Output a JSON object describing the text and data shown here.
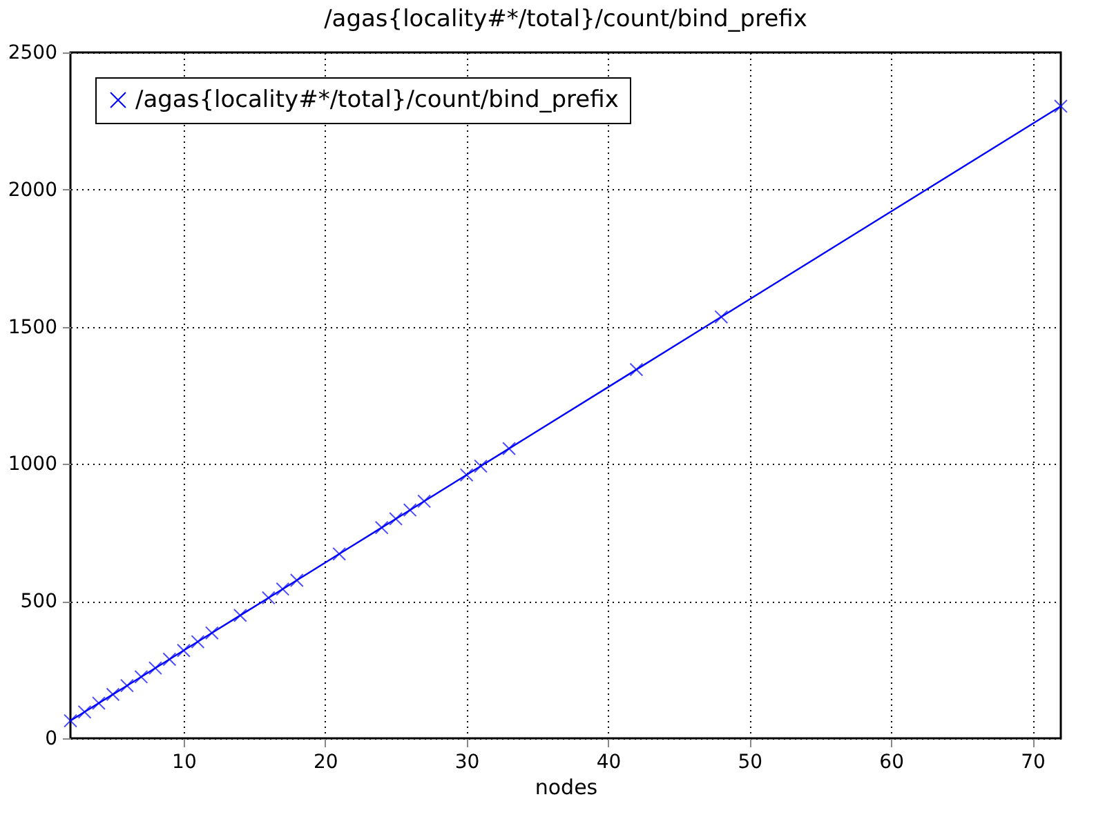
{
  "chart_data": {
    "type": "line",
    "title": "/agas{locality#*/total}/count/bind_prefix",
    "xlabel": "nodes",
    "x": [
      2,
      3,
      4,
      5,
      6,
      7,
      8,
      9,
      10,
      11,
      12,
      14,
      16,
      17,
      18,
      21,
      24,
      25,
      26,
      27,
      30,
      31,
      33,
      42,
      48,
      72
    ],
    "series": [
      {
        "name": "/agas{locality#*/total}/count/bind_prefix",
        "color": "#0000ff",
        "values": [
          64,
          96,
          128,
          160,
          192,
          224,
          256,
          288,
          320,
          352,
          384,
          448,
          512,
          544,
          576,
          672,
          768,
          800,
          832,
          864,
          960,
          992,
          1056,
          1344,
          1536,
          2304
        ]
      }
    ],
    "xlim": [
      2,
      72
    ],
    "xticks": [
      10,
      20,
      30,
      40,
      50,
      60,
      70
    ],
    "ylim": [
      0,
      2500
    ],
    "yticks": [
      0,
      500,
      1000,
      1500,
      2000,
      2500
    ],
    "grid": true,
    "legend": "top left",
    "marker": "cross",
    "line_style": "solid"
  }
}
